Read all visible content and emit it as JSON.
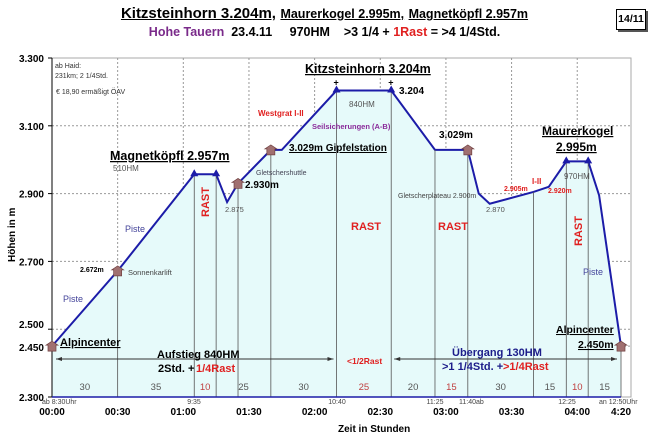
{
  "header": {
    "title_main": "Kitzsteinhorn 3.204m,",
    "title_2": "Maurerkogel 2.995m,",
    "title_3": "Magnetköpfl 2.957m",
    "region": "Hohe Tauern",
    "date": "23.4.11",
    "hm": "970HM",
    "time_a": ">3 1/4 +",
    "rast": "1Rast",
    "time_b": "= >4 1/4Std.",
    "badge": "14/11"
  },
  "notes": [
    "ab Haid:",
    "231km; 2 1/4Std.",
    "€ 18,90 ermäßigt ÖAV"
  ],
  "chart_data": {
    "type": "area",
    "xlabel": "Zeit in Stunden",
    "ylabel": "Höhen in m",
    "xlim_min": [
      0,
      260
    ],
    "ylim": [
      2300,
      3300
    ],
    "yticks": [
      {
        "v": 3300,
        "l": "3.300"
      },
      {
        "v": 3100,
        "l": "3.100"
      },
      {
        "v": 2900,
        "l": "2.900"
      },
      {
        "v": 2700,
        "l": "2.700"
      },
      {
        "v": 2500,
        "l": "2.500"
      },
      {
        "v": 2450,
        "l": "2.450"
      },
      {
        "v": 2300,
        "l": "2.300"
      }
    ],
    "xticks": [
      {
        "v": 0,
        "l": "00:00"
      },
      {
        "v": 30,
        "l": "00:30"
      },
      {
        "v": 60,
        "l": "01:00"
      },
      {
        "v": 90,
        "l": "01:30"
      },
      {
        "v": 120,
        "l": "02:00"
      },
      {
        "v": 150,
        "l": "02:30"
      },
      {
        "v": 180,
        "l": "03:00"
      },
      {
        "v": 210,
        "l": "03:30"
      },
      {
        "v": 240,
        "l": "04:00"
      },
      {
        "v": 260,
        "l": "4:20"
      }
    ],
    "profile": [
      [
        0,
        2450
      ],
      [
        30,
        2672
      ],
      [
        65,
        2957
      ],
      [
        75,
        2957
      ],
      [
        80,
        2875
      ],
      [
        85,
        2930
      ],
      [
        100,
        3029
      ],
      [
        105,
        3029
      ],
      [
        130,
        3204
      ],
      [
        155,
        3204
      ],
      [
        175,
        3029
      ],
      [
        190,
        3029
      ],
      [
        195,
        2900
      ],
      [
        200,
        2870
      ],
      [
        220,
        2905
      ],
      [
        227,
        2920
      ],
      [
        235,
        2995
      ],
      [
        245,
        2995
      ],
      [
        250,
        2895
      ],
      [
        260,
        2450
      ]
    ],
    "segment_boundaries": [
      30,
      65,
      75,
      85,
      100,
      130,
      155,
      175,
      190,
      220,
      235,
      245,
      260
    ],
    "segment_durations": [
      {
        "v": "30",
        "rest": false
      },
      {
        "v": "35",
        "rest": false
      },
      {
        "v": "10",
        "rest": true
      },
      {
        "v": "25",
        "rest": false
      },
      {
        "v": "30",
        "rest": false
      },
      {
        "v": "25",
        "rest": true
      },
      {
        "v": "20",
        "rest": false
      },
      {
        "v": "15",
        "rest": true
      },
      {
        "v": "30",
        "rest": false
      },
      {
        "v": "15",
        "rest": false
      },
      {
        "v": "10",
        "rest": true
      },
      {
        "v": "15",
        "rest": false
      }
    ],
    "clock_times": [
      "ab 8:30Uhr",
      "9:35",
      "10:40",
      "11:25",
      "11:40ab",
      "12:25",
      "an 12:50Uhr"
    ],
    "annotations": {
      "magnet": "Magnetköpfl 2.957m",
      "hm510": "510HM",
      "piste": "Piste",
      "e2672": "2.672m",
      "sonnenkarlift": "Sonnenkarlift",
      "rast": "RAST",
      "e2875": "2.875",
      "shuttle": "Gletschershuttle",
      "e2930": "2.930m",
      "westgrat": "Westgrat I-II",
      "seil": "Seilsicherungen (A-B)",
      "gipfelstation": "3.029m Gipfelstation",
      "kitz": "Kitzsteinhorn 3.204m",
      "hm840": "840HM",
      "e3204": "3.204",
      "e3029": "3.029m",
      "plateau": "Gletscherplateau 2.900m",
      "e2870": "2.870",
      "e2905": "2.905m",
      "grade": "I-II",
      "e2920": "2.920m",
      "maurer": "Maurerkogel",
      "e2995": "2.995m",
      "hm970": "970HM",
      "alpin": "Alpincenter",
      "e2450": "2.450m",
      "aufstieg": "Aufstieg 840HM",
      "aufstieg_time": "2Std. +",
      "aufstieg_rast": "1/4Rast",
      "half_rast": "<1/2Rast",
      "uebergang": "Übergang 130HM",
      "uebergang_time": ">1 1/4Std. +",
      "uebergang_rast": ">1/4Rast"
    },
    "colors": {
      "line": "#1c1ca8",
      "fill": "#e6fafa",
      "rest": "#e02020",
      "purple": "#8a2a9a",
      "marker": "#a07070"
    }
  }
}
